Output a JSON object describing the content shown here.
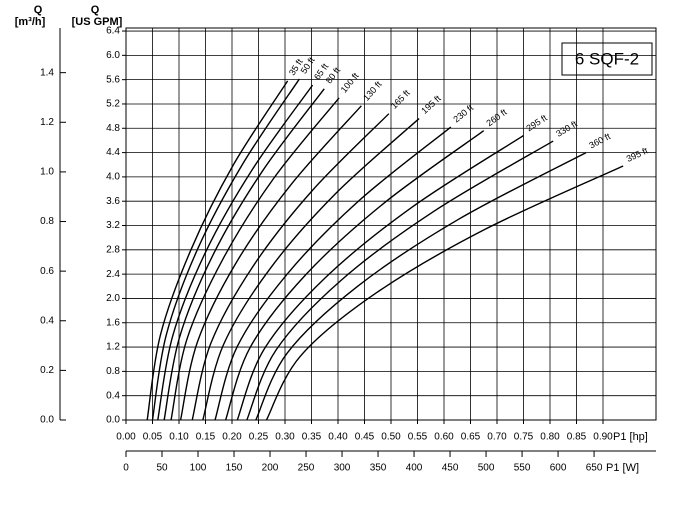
{
  "chart_data": {
    "type": "line",
    "title": "6 SQF-2",
    "y_label": "Q",
    "y_unit": "[US GPM]",
    "y2_label": "Q",
    "y2_unit": "[m³/h]",
    "x_label": "P1 [hp]",
    "x2_label": "P1 [W]",
    "xlim": [
      0,
      1.0
    ],
    "xticks": [
      {
        "value": 0,
        "label": "0.00"
      },
      {
        "value": 0.05,
        "label": "0.05"
      },
      {
        "value": 0.1,
        "label": "0.10"
      },
      {
        "value": 0.15,
        "label": "0.15"
      },
      {
        "value": 0.2,
        "label": "0.20"
      },
      {
        "value": 0.25,
        "label": "0.25"
      },
      {
        "value": 0.3,
        "label": "0.30"
      },
      {
        "value": 0.35,
        "label": "0.35"
      },
      {
        "value": 0.4,
        "label": "0.40"
      },
      {
        "value": 0.45,
        "label": "0.45"
      },
      {
        "value": 0.5,
        "label": "0.50"
      },
      {
        "value": 0.55,
        "label": "0.55"
      },
      {
        "value": 0.6,
        "label": "0.60"
      },
      {
        "value": 0.65,
        "label": "0.65"
      },
      {
        "value": 0.7,
        "label": "0.70"
      },
      {
        "value": 0.75,
        "label": "0.75"
      },
      {
        "value": 0.8,
        "label": "0.80"
      },
      {
        "value": 0.85,
        "label": "0.85"
      },
      {
        "value": 0.9,
        "label": "0.90"
      }
    ],
    "x2lim": [
      0,
      736
    ],
    "x2ticks": [
      0,
      50,
      100,
      150,
      200,
      250,
      300,
      350,
      400,
      450,
      500,
      550,
      600,
      650
    ],
    "ylim": [
      0,
      6.45
    ],
    "yticks": [
      {
        "value": 0,
        "label": "0.0"
      },
      {
        "value": 0.4,
        "label": "0.4"
      },
      {
        "value": 0.8,
        "label": "0.8"
      },
      {
        "value": 1.2,
        "label": "1.2"
      },
      {
        "value": 1.6,
        "label": "1.6"
      },
      {
        "value": 2.0,
        "label": "2.0"
      },
      {
        "value": 2.4,
        "label": "2.4"
      },
      {
        "value": 2.8,
        "label": "2.8"
      },
      {
        "value": 3.2,
        "label": "3.2"
      },
      {
        "value": 3.6,
        "label": "3.6"
      },
      {
        "value": 4.0,
        "label": "4.0"
      },
      {
        "value": 4.4,
        "label": "4.4"
      },
      {
        "value": 4.8,
        "label": "4.8"
      },
      {
        "value": 5.2,
        "label": "5.2"
      },
      {
        "value": 5.6,
        "label": "5.6"
      },
      {
        "value": 6.0,
        "label": "6.0"
      },
      {
        "value": 6.4,
        "label": "6.4"
      }
    ],
    "y2lim": [
      0,
      1.58
    ],
    "y2ticks": [
      {
        "value": 0,
        "label": "0.0"
      },
      {
        "value": 0.2,
        "label": "0.2"
      },
      {
        "value": 0.4,
        "label": "0.4"
      },
      {
        "value": 0.6,
        "label": "0.6"
      },
      {
        "value": 0.8,
        "label": "0.8"
      },
      {
        "value": 1.0,
        "label": "1.0"
      },
      {
        "value": 1.2,
        "label": "1.2"
      },
      {
        "value": 1.4,
        "label": "1.4"
      }
    ],
    "grid": true,
    "color": "#000000",
    "series": [
      {
        "name": "35 ft",
        "x": [
          0.04,
          0.065,
          0.122,
          0.202,
          0.305
        ],
        "values": [
          0,
          1.4,
          2.79,
          4.19,
          5.58
        ]
      },
      {
        "name": "50 ft",
        "x": [
          0.05,
          0.076,
          0.135,
          0.22,
          0.327
        ],
        "values": [
          0,
          1.4,
          2.81,
          4.21,
          5.61
        ]
      },
      {
        "name": "65 ft",
        "x": [
          0.06,
          0.088,
          0.15,
          0.239,
          0.352
        ],
        "values": [
          0,
          1.38,
          2.76,
          4.13,
          5.51
        ]
      },
      {
        "name": "80 ft",
        "x": [
          0.072,
          0.101,
          0.165,
          0.257,
          0.374
        ],
        "values": [
          0,
          1.36,
          2.73,
          4.09,
          5.45
        ]
      },
      {
        "name": "100 ft",
        "x": [
          0.085,
          0.115,
          0.183,
          0.279,
          0.402
        ],
        "values": [
          0,
          1.33,
          2.65,
          3.98,
          5.3
        ]
      },
      {
        "name": "130 ft",
        "x": [
          0.103,
          0.135,
          0.208,
          0.312,
          0.444
        ],
        "values": [
          0,
          1.29,
          2.59,
          3.88,
          5.17
        ]
      },
      {
        "name": "165 ft",
        "x": [
          0.125,
          0.16,
          0.239,
          0.352,
          0.496
        ],
        "values": [
          0,
          1.26,
          2.52,
          3.78,
          5.04
        ]
      },
      {
        "name": "195 ft",
        "x": [
          0.145,
          0.184,
          0.271,
          0.395,
          0.553
        ],
        "values": [
          0,
          1.24,
          2.48,
          3.72,
          4.96
        ]
      },
      {
        "name": "230 ft",
        "x": [
          0.168,
          0.21,
          0.305,
          0.441,
          0.613
        ],
        "values": [
          0,
          1.21,
          2.41,
          3.62,
          4.82
        ]
      },
      {
        "name": "260 ft",
        "x": [
          0.188,
          0.234,
          0.338,
          0.487,
          0.675
        ],
        "values": [
          0,
          1.19,
          2.38,
          3.57,
          4.76
        ]
      },
      {
        "name": "295 ft",
        "x": [
          0.21,
          0.261,
          0.376,
          0.541,
          0.75
        ],
        "values": [
          0,
          1.17,
          2.34,
          3.51,
          4.68
        ]
      },
      {
        "name": "330 ft",
        "x": [
          0.228,
          0.283,
          0.406,
          0.582,
          0.806
        ],
        "values": [
          0,
          1.15,
          2.3,
          3.44,
          4.59
        ]
      },
      {
        "name": "360 ft",
        "x": [
          0.245,
          0.304,
          0.437,
          0.627,
          0.868
        ],
        "values": [
          0,
          1.1,
          2.2,
          3.3,
          4.4
        ]
      },
      {
        "name": "395 ft",
        "x": [
          0.265,
          0.329,
          0.472,
          0.678,
          0.938
        ],
        "values": [
          0,
          1.05,
          2.09,
          3.14,
          4.18
        ]
      }
    ]
  }
}
